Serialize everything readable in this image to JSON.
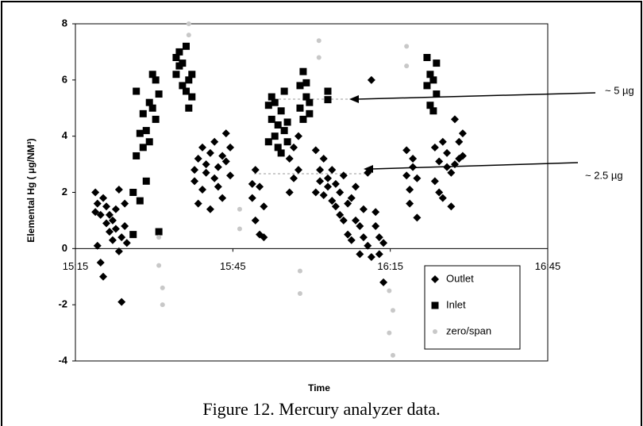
{
  "chart_data": {
    "type": "scatter",
    "caption": "Figure 12.  Mercury analyzer data.",
    "x_label": "Time",
    "y_label": "Elemental Hg ( μg/NM³)",
    "xlim": [
      915,
      1005
    ],
    "xticks": [
      {
        "value": 915,
        "label": "15:15"
      },
      {
        "value": 945,
        "label": "15:45"
      },
      {
        "value": 975,
        "label": "16:15"
      },
      {
        "value": 1005,
        "label": "16:45"
      }
    ],
    "ylim": [
      -4,
      8
    ],
    "yticks": [
      -4,
      -2,
      0,
      2,
      4,
      6,
      8
    ],
    "legend": "lower right",
    "annotations": [
      {
        "text": "~ 5 µg"
      },
      {
        "text": "~ 2.5 µg"
      }
    ],
    "series": [
      {
        "name": "Outlet",
        "color": "#000000",
        "marker": "diamond",
        "x": [
          918.8,
          918.8,
          919.2,
          919.2,
          919.8,
          919.8,
          920.3,
          920.3,
          920.9,
          920.9,
          921.5,
          921.5,
          922.1,
          922.1,
          922.7,
          922.7,
          923.3,
          923.3,
          923.8,
          923.8,
          924.4,
          924.4,
          924.8,
          937.7,
          937.7,
          938.4,
          938.4,
          939.2,
          939.2,
          939.9,
          939.9,
          940.7,
          940.7,
          941.5,
          941.5,
          942.2,
          942.2,
          943.0,
          943.0,
          943.7,
          943.7,
          944.5,
          944.5,
          948.7,
          948.7,
          949.3,
          949.3,
          950.1,
          950.1,
          950.9,
          950.9,
          955.8,
          955.8,
          956.6,
          956.6,
          957.5,
          957.5,
          960.8,
          960.8,
          961.6,
          961.6,
          962.3,
          962.3,
          963.1,
          963.1,
          963.9,
          963.9,
          964.6,
          964.6,
          965.4,
          965.4,
          966.1,
          966.1,
          966.9,
          966.9,
          967.6,
          967.6,
          968.4,
          968.4,
          969.2,
          969.2,
          969.9,
          969.9,
          970.7,
          970.7,
          971.4,
          971.4,
          972.2,
          972.2,
          972.9,
          972.9,
          973.7,
          973.7,
          978.1,
          978.1,
          978.7,
          978.7,
          979.3,
          979.3,
          980.1,
          980.1,
          983.5,
          983.5,
          984.3,
          984.3,
          985.0,
          985.0,
          985.8,
          985.8,
          986.6,
          986.6,
          987.3,
          987.3,
          988.1,
          988.1,
          988.8,
          988.8
        ],
        "values": [
          1.3,
          2.0,
          0.1,
          1.6,
          -0.5,
          1.2,
          -1.0,
          1.8,
          1.5,
          0.9,
          0.6,
          1.2,
          1.0,
          0.3,
          0.7,
          1.4,
          -0.1,
          2.1,
          -1.9,
          0.4,
          1.6,
          0.8,
          0.2,
          2.4,
          2.8,
          1.6,
          3.2,
          2.1,
          3.6,
          2.7,
          3.0,
          1.4,
          3.4,
          2.5,
          3.8,
          2.9,
          2.2,
          1.8,
          3.3,
          3.1,
          4.1,
          2.6,
          3.6,
          2.3,
          1.8,
          1.0,
          2.8,
          0.5,
          2.2,
          1.5,
          0.4,
          2.0,
          3.2,
          3.6,
          2.5,
          4.0,
          2.8,
          3.5,
          2.0,
          2.8,
          2.4,
          1.9,
          3.2,
          2.5,
          2.2,
          1.7,
          2.8,
          2.3,
          1.5,
          2.0,
          1.2,
          1.0,
          2.6,
          0.5,
          1.6,
          1.8,
          0.3,
          1.0,
          2.2,
          -0.2,
          0.8,
          0.4,
          1.4,
          2.7,
          0.1,
          6.0,
          -0.3,
          0.8,
          1.3,
          -0.2,
          0.4,
          -1.2,
          0.2,
          3.5,
          2.6,
          1.6,
          2.1,
          2.9,
          3.2,
          1.1,
          2.5,
          3.6,
          2.4,
          2.0,
          3.1,
          3.8,
          1.8,
          2.9,
          3.4,
          1.5,
          2.7,
          4.6,
          3.0,
          3.2,
          3.8,
          4.1,
          3.3
        ]
      },
      {
        "name": "Inlet",
        "color": "#000000",
        "marker": "square",
        "x": [
          926.0,
          926.0,
          926.6,
          926.6,
          927.3,
          927.3,
          927.9,
          927.9,
          928.5,
          928.5,
          929.1,
          929.1,
          929.7,
          929.7,
          930.3,
          930.3,
          930.9,
          930.9,
          934.2,
          934.2,
          934.8,
          934.8,
          935.4,
          935.4,
          936.1,
          936.1,
          936.6,
          936.6,
          937.2,
          937.2,
          951.8,
          951.8,
          952.4,
          952.4,
          953.0,
          953.0,
          953.6,
          953.6,
          954.2,
          954.2,
          954.8,
          954.8,
          955.4,
          955.4,
          957.8,
          957.8,
          958.4,
          958.4,
          959.0,
          959.0,
          959.6,
          959.6,
          963.1,
          963.1,
          982.0,
          982.0,
          982.6,
          982.6,
          983.2,
          983.2,
          983.8,
          983.8
        ],
        "values": [
          0.5,
          2.0,
          3.3,
          5.6,
          4.1,
          1.7,
          3.6,
          4.8,
          2.4,
          4.2,
          5.2,
          3.8,
          6.2,
          5.0,
          4.6,
          6.0,
          5.5,
          0.6,
          6.8,
          6.2,
          6.5,
          7.0,
          5.8,
          6.6,
          7.2,
          5.6,
          6.0,
          5.0,
          5.4,
          6.2,
          3.8,
          5.1,
          4.6,
          5.4,
          4.0,
          5.2,
          3.6,
          4.4,
          4.9,
          3.4,
          4.2,
          5.6,
          4.5,
          3.8,
          5.0,
          5.8,
          6.3,
          4.6,
          5.4,
          5.9,
          4.8,
          5.2,
          5.6,
          5.3,
          6.8,
          5.8,
          6.2,
          5.1,
          6.0,
          4.9,
          6.6,
          5.5
        ]
      },
      {
        "name": "zero/span",
        "color": "#c8c8c8",
        "marker": "dot",
        "x": [
          930.9,
          930.9,
          931.6,
          931.6,
          936.6,
          936.6,
          946.3,
          946.3,
          957.8,
          957.8,
          961.4,
          961.4,
          974.8,
          974.8,
          975.5,
          975.5,
          978.1,
          978.1
        ],
        "values": [
          0.4,
          -0.6,
          -1.4,
          -2.0,
          8.0,
          7.6,
          0.7,
          1.4,
          -0.8,
          -1.6,
          7.4,
          6.8,
          -1.5,
          -3.0,
          -3.8,
          -2.2,
          7.2,
          6.5
        ]
      }
    ]
  }
}
